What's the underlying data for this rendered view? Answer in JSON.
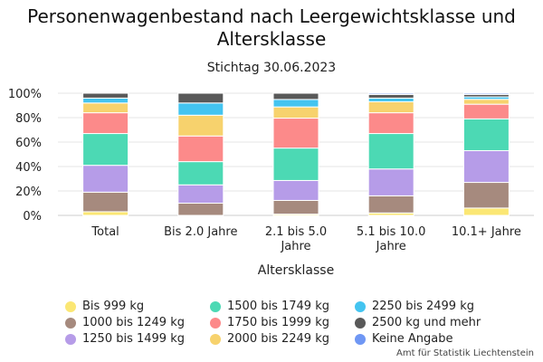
{
  "chart_data": {
    "type": "bar",
    "stacked": true,
    "percent": true,
    "title": "Personenwagenbestand nach Leergewichtsklasse und Altersklasse",
    "subtitle": "Stichtag 30.06.2023",
    "xlabel": "Altersklasse",
    "ylabel": "",
    "ylim": [
      0,
      100
    ],
    "yticks": [
      "0%",
      "20%",
      "40%",
      "60%",
      "80%",
      "100%"
    ],
    "categories": [
      "Total",
      "Bis 2.0 Jahre",
      "2.1 bis 5.0 Jahre",
      "5.1 bis 10.0 Jahre",
      "10.1+ Jahre"
    ],
    "legend_position": "bottom",
    "grid": true,
    "series": [
      {
        "name": "Bis 999 kg",
        "color": "#fbe774",
        "values": [
          3,
          0,
          1,
          2,
          6
        ]
      },
      {
        "name": "1000 bis 1249 kg",
        "color": "#a68a7e",
        "values": [
          16,
          10,
          11,
          14,
          21
        ]
      },
      {
        "name": "1250 bis 1499 kg",
        "color": "#b69ce8",
        "values": [
          22,
          15,
          16,
          22,
          26
        ]
      },
      {
        "name": "1500 bis 1749 kg",
        "color": "#4cd9b4",
        "values": [
          26,
          19,
          26,
          29,
          26
        ]
      },
      {
        "name": "1750 bis 1999 kg",
        "color": "#fc8a8a",
        "values": [
          17,
          21,
          24,
          17,
          12
        ]
      },
      {
        "name": "2000 bis 2249 kg",
        "color": "#f7d26d",
        "values": [
          8,
          17,
          9,
          9,
          4
        ]
      },
      {
        "name": "2250 bis 2499 kg",
        "color": "#44c4f0",
        "values": [
          4,
          10,
          6,
          3,
          2
        ]
      },
      {
        "name": "2500 kg und mehr",
        "color": "#595959",
        "values": [
          4,
          8,
          5,
          3,
          2
        ]
      },
      {
        "name": "Keine Angabe",
        "color": "#6f97f4",
        "values": [
          0,
          0,
          0,
          1,
          1
        ]
      }
    ]
  },
  "credit": "Amt für Statistik Liechtenstein"
}
